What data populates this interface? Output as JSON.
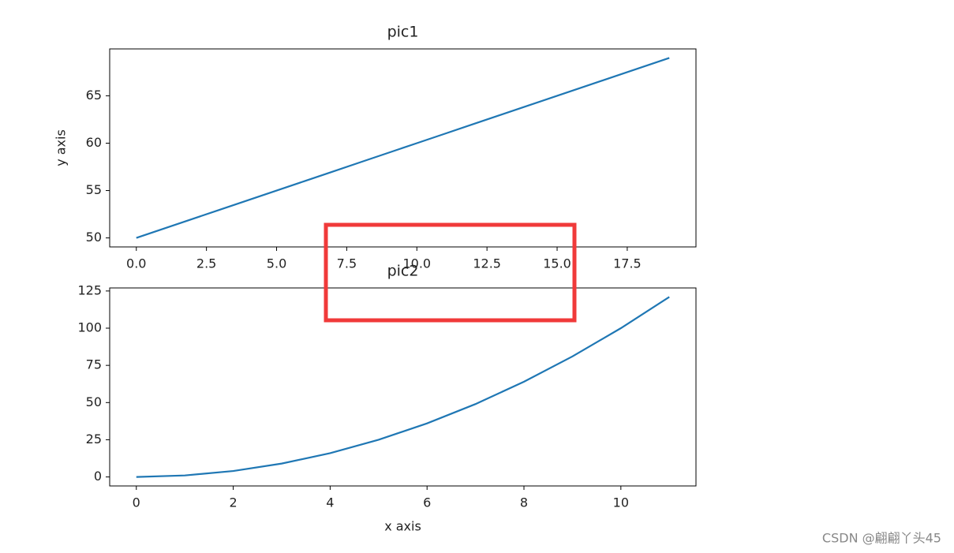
{
  "chart_data": [
    {
      "type": "line",
      "title": "pic1",
      "ylabel": "y axis",
      "x": [
        0,
        1,
        2,
        3,
        4,
        5,
        6,
        7,
        8,
        9,
        10,
        11,
        12,
        13,
        14,
        15,
        16,
        17,
        18,
        19
      ],
      "series": [
        {
          "color": "#1f77b4",
          "values": [
            50,
            51,
            52,
            53,
            54,
            55,
            56,
            57,
            58,
            59,
            60,
            61,
            62,
            63,
            64,
            65,
            66,
            67,
            68,
            69
          ]
        }
      ],
      "xlim": [
        -0.95,
        19.95
      ],
      "ylim": [
        49.05,
        69.95
      ],
      "xticks": [
        {
          "value": 0,
          "label": "0.0"
        },
        2.5,
        {
          "value": 5,
          "label": "5.0"
        },
        7.5,
        {
          "value": 10,
          "label": "10.0"
        },
        12.5,
        {
          "value": 15,
          "label": "15.0"
        },
        17.5
      ],
      "yticks": [
        50,
        55,
        60,
        65
      ]
    },
    {
      "type": "line",
      "title": "pic2",
      "xlabel": "x axis",
      "x": [
        0,
        1,
        2,
        3,
        4,
        5,
        6,
        7,
        8,
        9,
        10,
        11
      ],
      "series": [
        {
          "color": "#1f77b4",
          "values": [
            0,
            1,
            4,
            9,
            16,
            25,
            36,
            49,
            64,
            81,
            100,
            121
          ]
        }
      ],
      "xlim": [
        -0.55,
        11.55
      ],
      "ylim": [
        -6.05,
        127.05
      ],
      "xticks": [
        0,
        2,
        4,
        6,
        8,
        10
      ],
      "yticks": [
        0,
        25,
        50,
        75,
        100,
        125
      ]
    }
  ],
  "watermark": "CSDN @翩翩丫头45"
}
